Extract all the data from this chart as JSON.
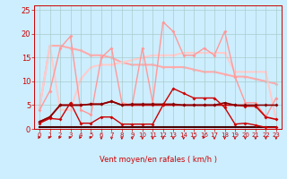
{
  "xlabel": "Vent moyen/en rafales ( km/h )",
  "background_color": "#cceeff",
  "grid_color": "#aacccc",
  "xlim": [
    -0.5,
    23.5
  ],
  "ylim": [
    0,
    26
  ],
  "yticks": [
    0,
    5,
    10,
    15,
    20,
    25
  ],
  "xticks": [
    0,
    1,
    2,
    3,
    4,
    5,
    6,
    7,
    8,
    9,
    10,
    11,
    12,
    13,
    14,
    15,
    16,
    17,
    18,
    19,
    20,
    21,
    22,
    23
  ],
  "series": [
    {
      "x": [
        0,
        1,
        2,
        3,
        4,
        5,
        6,
        7,
        8,
        9,
        10,
        11,
        12,
        13,
        14,
        15,
        16,
        17,
        18,
        19,
        20,
        21,
        22,
        23
      ],
      "y": [
        1.2,
        2.2,
        2.0,
        5.5,
        1.2,
        1.2,
        2.5,
        2.5,
        1.0,
        1.0,
        1.0,
        1.0,
        5.0,
        8.5,
        7.5,
        6.5,
        6.5,
        6.5,
        4.5,
        1.0,
        1.2,
        0.8,
        0.3,
        0.3
      ],
      "color": "#cc0000",
      "lw": 1.0,
      "marker": "D",
      "ms": 2.0,
      "zorder": 5
    },
    {
      "x": [
        0,
        1,
        2,
        3,
        4,
        5,
        6,
        7,
        8,
        9,
        10,
        11,
        12,
        13,
        14,
        15,
        16,
        17,
        18,
        19,
        20,
        21,
        22,
        23
      ],
      "y": [
        1.5,
        2.5,
        5.0,
        5.0,
        5.0,
        5.2,
        5.2,
        5.8,
        5.0,
        5.0,
        5.0,
        5.0,
        5.0,
        5.0,
        5.0,
        5.0,
        5.0,
        5.0,
        5.0,
        5.0,
        4.8,
        4.8,
        2.5,
        2.0
      ],
      "color": "#cc0000",
      "lw": 1.2,
      "marker": "D",
      "ms": 2.0,
      "zorder": 4
    },
    {
      "x": [
        0,
        1,
        2,
        3,
        4,
        5,
        6,
        7,
        8,
        9,
        10,
        11,
        12,
        13,
        14,
        15,
        16,
        17,
        18,
        19,
        20,
        21,
        22,
        23
      ],
      "y": [
        1.5,
        2.5,
        5.0,
        5.0,
        5.0,
        5.2,
        5.2,
        5.8,
        5.0,
        5.2,
        5.2,
        5.2,
        5.2,
        5.2,
        5.0,
        5.0,
        5.0,
        5.0,
        5.5,
        5.0,
        5.0,
        5.0,
        5.0,
        5.0
      ],
      "color": "#880000",
      "lw": 1.2,
      "marker": "D",
      "ms": 2.0,
      "zorder": 4
    },
    {
      "x": [
        0,
        1,
        2,
        3,
        4,
        5,
        6,
        7,
        8,
        9,
        10,
        11,
        12,
        13,
        14,
        15,
        16,
        17,
        18,
        19,
        20,
        21,
        22,
        23
      ],
      "y": [
        0.3,
        0.3,
        0.3,
        0.3,
        0.3,
        0.3,
        0.3,
        0.3,
        0.3,
        0.3,
        0.3,
        0.3,
        0.3,
        0.3,
        0.3,
        0.3,
        0.3,
        0.3,
        0.3,
        0.3,
        0.3,
        0.3,
        0.3,
        0.3
      ],
      "color": "#440000",
      "lw": 1.5,
      "marker": null,
      "ms": 0,
      "zorder": 3
    },
    {
      "x": [
        0,
        1,
        2,
        3,
        4,
        5,
        6,
        7,
        8,
        9,
        10,
        11,
        12,
        13,
        14,
        15,
        16,
        17,
        18,
        19,
        20,
        21,
        22,
        23
      ],
      "y": [
        4.0,
        8.0,
        17.0,
        19.5,
        4.0,
        3.0,
        15.0,
        17.0,
        5.5,
        5.0,
        17.0,
        5.5,
        22.5,
        20.5,
        15.5,
        15.5,
        17.0,
        15.5,
        20.5,
        11.0,
        5.5,
        5.5,
        2.5,
        6.5
      ],
      "color": "#ff9999",
      "lw": 1.0,
      "marker": "D",
      "ms": 2.0,
      "zorder": 2
    },
    {
      "x": [
        0,
        1,
        2,
        3,
        4,
        5,
        6,
        7,
        8,
        9,
        10,
        11,
        12,
        13,
        14,
        15,
        16,
        17,
        18,
        19,
        20,
        21,
        22,
        23
      ],
      "y": [
        4.5,
        17.5,
        17.5,
        17.0,
        16.5,
        15.5,
        15.5,
        15.0,
        14.0,
        13.5,
        13.5,
        13.5,
        13.0,
        13.0,
        13.0,
        12.5,
        12.0,
        12.0,
        11.5,
        11.0,
        11.0,
        10.5,
        10.0,
        9.5
      ],
      "color": "#ffaaaa",
      "lw": 1.5,
      "marker": "D",
      "ms": 2.0,
      "zorder": 1
    },
    {
      "x": [
        0,
        1,
        2,
        3,
        4,
        5,
        6,
        7,
        8,
        9,
        10,
        11,
        12,
        13,
        14,
        15,
        16,
        17,
        18,
        19,
        20,
        21,
        22,
        23
      ],
      "y": [
        4.5,
        17.5,
        4.0,
        4.0,
        10.5,
        13.0,
        13.5,
        13.5,
        14.0,
        14.5,
        15.0,
        15.5,
        15.5,
        15.5,
        16.0,
        16.0,
        16.0,
        16.0,
        16.0,
        12.0,
        12.0,
        12.0,
        12.0,
        2.0
      ],
      "color": "#ffcccc",
      "lw": 1.5,
      "marker": "D",
      "ms": 2.0,
      "zorder": 1
    }
  ],
  "wind_dirs": [
    "r",
    "r",
    "r",
    "r",
    "r",
    "r",
    "d",
    "d",
    "d",
    "d",
    "d",
    "d",
    "d",
    "d",
    "d",
    "d",
    "r",
    "d",
    "d",
    "d",
    "d",
    "d",
    "d",
    "d"
  ],
  "arrow_color": "#cc0000",
  "xlabel_color": "#cc0000",
  "xlabel_fontsize": 6,
  "tick_fontsize": 5,
  "tick_color": "#cc0000"
}
